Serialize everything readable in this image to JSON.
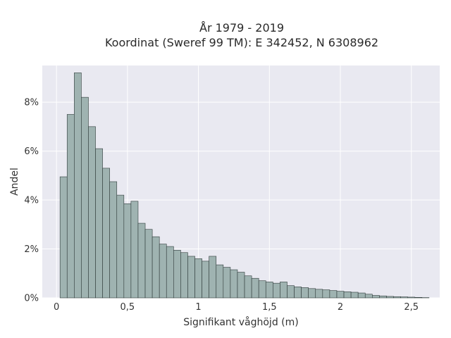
{
  "chart_data": {
    "type": "bar",
    "title_line1": "År 1979 - 2019",
    "title_line2": "Koordinat (Sweref 99 TM): E 342452, N 6308962",
    "xlabel": "Signifikant våghöjd (m)",
    "ylabel": "Andel",
    "xlim": [
      -0.1,
      2.7
    ],
    "ylim": [
      0,
      9.5
    ],
    "x_ticks": [
      0,
      0.5,
      1,
      1.5,
      2,
      2.5
    ],
    "x_tick_labels": [
      "0",
      "0,5",
      "1",
      "1,5",
      "2",
      "2,5"
    ],
    "y_ticks": [
      0,
      2,
      4,
      6,
      8
    ],
    "y_tick_labels": [
      "0%",
      "2%",
      "4%",
      "6%",
      "8%"
    ],
    "bin_start": 0.025,
    "bin_width": 0.05,
    "values": [
      4.95,
      7.5,
      9.2,
      8.2,
      7.0,
      6.1,
      5.3,
      4.75,
      4.2,
      3.85,
      3.95,
      3.05,
      2.8,
      2.5,
      2.2,
      2.1,
      1.95,
      1.85,
      1.7,
      1.6,
      1.5,
      1.7,
      1.35,
      1.25,
      1.15,
      1.05,
      0.9,
      0.8,
      0.7,
      0.65,
      0.6,
      0.65,
      0.5,
      0.45,
      0.42,
      0.38,
      0.35,
      0.33,
      0.3,
      0.27,
      0.25,
      0.23,
      0.2,
      0.15,
      0.1,
      0.08,
      0.06,
      0.05,
      0.04,
      0.03,
      0.02,
      0.01
    ],
    "grid": true,
    "colors": {
      "bar_fill": "#9fb3b1",
      "bar_stroke": "#2f3b3a",
      "plot_bg": "#e9e9f1",
      "grid": "#ffffff"
    }
  }
}
